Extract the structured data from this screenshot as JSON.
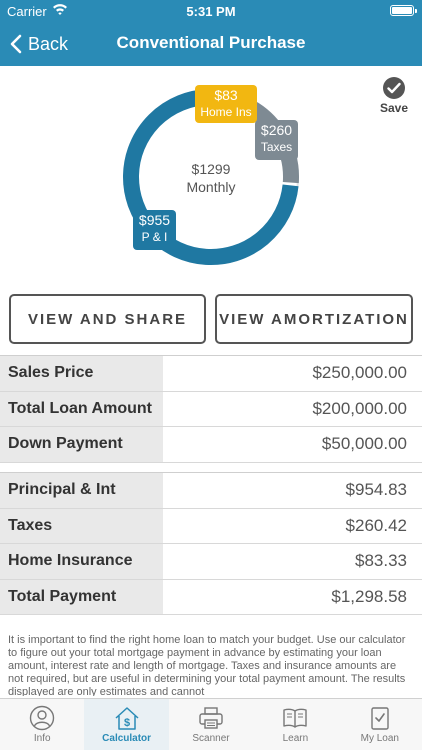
{
  "status_bar": {
    "carrier": "Carrier",
    "time": "5:31 PM"
  },
  "nav": {
    "back_label": "Back",
    "title": "Conventional Purchase"
  },
  "chart_data": {
    "type": "pie",
    "style": "donut",
    "center_value": "$1299",
    "center_label": "Monthly",
    "slices": [
      {
        "label": "$955",
        "sub": "P & I",
        "value": 955,
        "color": "#1f78a2"
      },
      {
        "label": "$260",
        "sub": "Taxes",
        "value": 260,
        "color": "#7e8a93"
      },
      {
        "label": "$83",
        "sub": "Home Ins",
        "value": 83,
        "color": "#f2b711"
      }
    ]
  },
  "save": {
    "label": "Save"
  },
  "buttons": {
    "share": "VIEW AND SHARE",
    "amortization": "VIEW AMORTIZATION"
  },
  "loan_table": [
    {
      "label": "Sales Price",
      "value": "$250,000.00"
    },
    {
      "label": "Total Loan Amount",
      "value": "$200,000.00"
    },
    {
      "label": "Down Payment",
      "value": "$50,000.00"
    }
  ],
  "payment_table": [
    {
      "label": "Principal & Int",
      "value": "$954.83"
    },
    {
      "label": "Taxes",
      "value": "$260.42"
    },
    {
      "label": "Home Insurance",
      "value": "$83.33"
    },
    {
      "label": "Total Payment",
      "value": "$1,298.58"
    }
  ],
  "disclaimer": "It is important to find the right home loan to match your budget. Use our calculator to figure out your total mortgage payment in advance by estimating your loan amount, interest rate and length of mortgage. Taxes and insurance amounts are not required, but are useful in determining your total payment amount.  The results displayed are only estimates and cannot",
  "tabs": [
    {
      "label": "Info",
      "icon": "person-circle-icon"
    },
    {
      "label": "Calculator",
      "icon": "house-dollar-icon",
      "active": true
    },
    {
      "label": "Scanner",
      "icon": "printer-icon"
    },
    {
      "label": "Learn",
      "icon": "book-icon"
    },
    {
      "label": "My Loan",
      "icon": "checklist-icon"
    }
  ]
}
